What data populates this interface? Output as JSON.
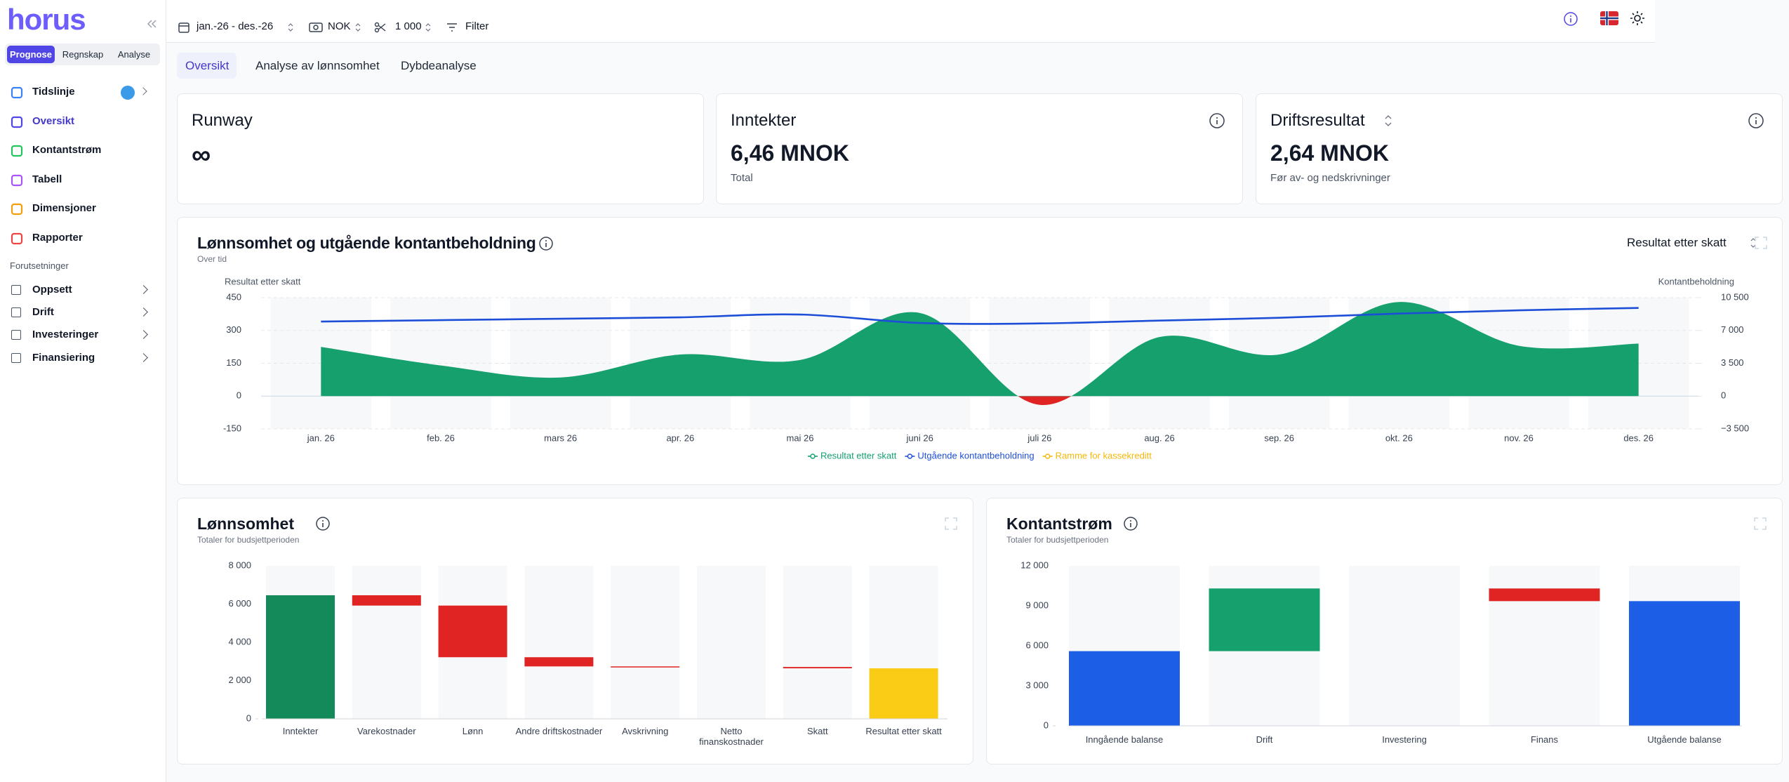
{
  "sidebar": {
    "logo": "horus",
    "modes": [
      "Prognose",
      "Regnskap",
      "Analyse"
    ],
    "nav": [
      "Tidslinje",
      "Oversikt",
      "Kontantstrøm",
      "Tabell",
      "Dimensjoner",
      "Rapporter"
    ],
    "section": "Forutsetninger",
    "assumptions": [
      "Oppsett",
      "Drift",
      "Investeringer",
      "Finansiering"
    ]
  },
  "toolbar": {
    "period": "jan.-26 - des.-26",
    "currency": "NOK",
    "unit": "1 000",
    "filter": "Filter"
  },
  "tabs": [
    "Oversikt",
    "Analyse av lønnsomhet",
    "Dybdeanalyse"
  ],
  "cards": [
    {
      "title": "Runway",
      "value": "∞"
    },
    {
      "title": "Inntekter",
      "value": "6,46 MNOK",
      "note": "Total"
    },
    {
      "title": "Driftsresultat",
      "value": "2,64 MNOK",
      "note": "Før av- og nedskrivninger"
    }
  ],
  "charts": [
    {
      "type": "combo",
      "title": "Lønnsomhet og utgående kontantbeholdning",
      "subtitle": "Over tid",
      "selector": "Resultat etter skatt",
      "y_label": "Resultat etter skatt",
      "y2_label": "Kontantbeholdning",
      "categories": [
        "jan. 26",
        "feb. 26",
        "mars 26",
        "apr. 26",
        "mai 26",
        "juni 26",
        "juli 26",
        "aug. 26",
        "sep. 26",
        "okt. 26",
        "nov. 26",
        "des. 26"
      ],
      "series": [
        {
          "name": "Resultat etter skatt",
          "type": "area",
          "color": "#15a06e",
          "negative_color": "#e02424",
          "values": [
            225,
            140,
            85,
            190,
            165,
            380,
            -40,
            270,
            190,
            430,
            230,
            240
          ]
        },
        {
          "name": "Utgående kontantbeholdning",
          "type": "line",
          "axis": "y2",
          "color": "#1d4ed8",
          "values": [
            7950,
            8100,
            8250,
            8400,
            8700,
            7800,
            7750,
            8050,
            8350,
            8800,
            9150,
            9400
          ]
        },
        {
          "name": "Ramme for kassekreditt",
          "type": "line",
          "axis": "y2",
          "color": "#f5b70a",
          "values": [
            null,
            null,
            null,
            null,
            null,
            null,
            null,
            null,
            null,
            null,
            null,
            null
          ]
        }
      ],
      "ylim": [
        -150,
        450
      ],
      "yticks": [
        -150,
        0,
        150,
        300,
        450
      ],
      "y2lim": [
        -3500,
        10500
      ],
      "y2ticks": [
        {
          "value": -3500,
          "label": "−3 500"
        },
        0,
        {
          "value": 3500,
          "label": "3 500"
        },
        {
          "value": 7000,
          "label": "7 000"
        },
        {
          "value": 10500,
          "label": "10 500"
        }
      ],
      "grid": true
    },
    {
      "type": "waterfall",
      "title": "Lønnsomhet",
      "subtitle": "Totaler for budsjettperioden",
      "categories": [
        "Inntekter",
        "Varekostnader",
        "Lønn",
        "Andre driftskostnader",
        "Avskrivning",
        "Netto finanskostnader",
        "Skatt",
        "Resultat etter skatt"
      ],
      "values": [
        6460,
        -540,
        -2700,
        -480,
        -30,
        0,
        -70,
        2640
      ],
      "colors": [
        "#148a5a",
        "#e02424",
        "#e02424",
        "#e02424",
        "#e02424",
        "#e02424",
        "#e02424",
        "#facc15"
      ],
      "ylim": [
        0,
        8000
      ],
      "yticks": [
        0,
        {
          "value": 2000,
          "label": "2 000"
        },
        {
          "value": 4000,
          "label": "4 000"
        },
        {
          "value": 6000,
          "label": "6 000"
        },
        {
          "value": 8000,
          "label": "8 000"
        }
      ]
    },
    {
      "type": "waterfall",
      "title": "Kontantstrøm",
      "subtitle": "Totaler for budsjettperioden",
      "categories": [
        "Inngående balanse",
        "Drift",
        "Investering",
        "Finans",
        "Utgående balanse"
      ],
      "values": [
        5600,
        4700,
        0,
        -950,
        9350
      ],
      "colors": [
        "#1c5ee6",
        "#15a06e",
        "#15a06e",
        "#e02424",
        "#1c5ee6"
      ],
      "ylim": [
        0,
        12000
      ],
      "yticks": [
        0,
        {
          "value": 3000,
          "label": "3 000"
        },
        {
          "value": 6000,
          "label": "6 000"
        },
        {
          "value": 9000,
          "label": "9 000"
        },
        {
          "value": 12000,
          "label": "12 000"
        }
      ]
    }
  ]
}
